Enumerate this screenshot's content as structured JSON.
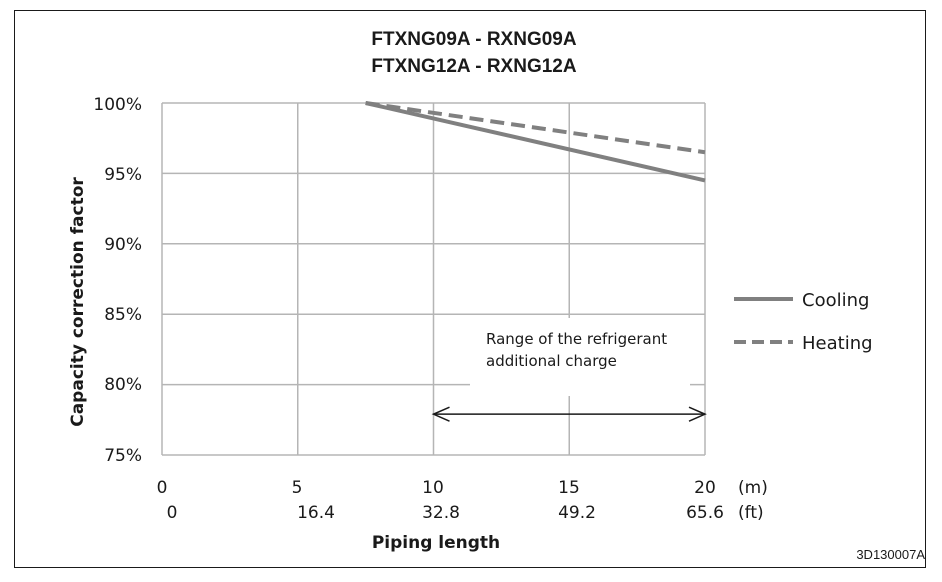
{
  "chart_data": {
    "type": "line",
    "title_lines": [
      "FTXNG09A - RXNG09A",
      "FTXNG12A - RXNG12A"
    ],
    "ylabel": "Capacity correction factor",
    "xlabel": "Piping length",
    "xlim": [
      0,
      20
    ],
    "ylim": [
      75,
      100
    ],
    "x_ticks_m": [
      "0",
      "5",
      "10",
      "15",
      "20"
    ],
    "x_ticks_ft": [
      "0",
      "16.4",
      "32.8",
      "49.2",
      "65.6"
    ],
    "x_unit_m": "(m)",
    "x_unit_ft": "(ft)",
    "y_ticks": [
      "100%",
      "95%",
      "90%",
      "85%",
      "80%",
      "75%"
    ],
    "grid": true,
    "legend_position": "right",
    "series": [
      {
        "name": "Cooling",
        "style": "solid",
        "color": "#808080",
        "points": [
          [
            7.5,
            100
          ],
          [
            20,
            94.5
          ]
        ]
      },
      {
        "name": "Heating",
        "style": "dashed",
        "color": "#808080",
        "points": [
          [
            7.5,
            100
          ],
          [
            20,
            96.5
          ]
        ]
      }
    ],
    "annotation": {
      "lines": [
        "Range of the refrigerant",
        "additional charge"
      ],
      "range_x": [
        10,
        20
      ],
      "arrow_y": 77.9
    },
    "figure_code": "3D130007A"
  }
}
